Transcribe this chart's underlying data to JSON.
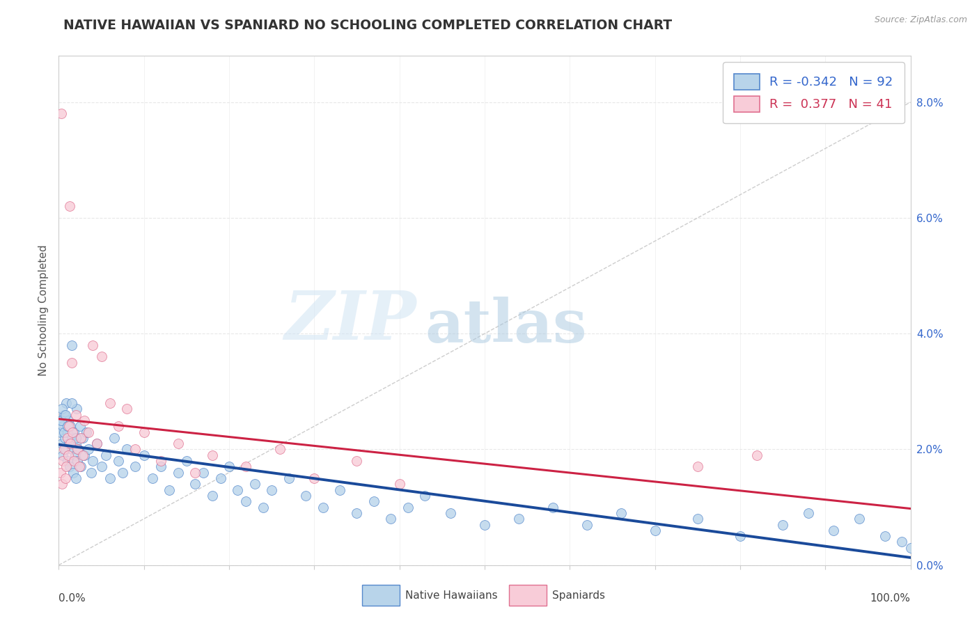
{
  "title": "NATIVE HAWAIIAN VS SPANIARD NO SCHOOLING COMPLETED CORRELATION CHART",
  "source": "Source: ZipAtlas.com",
  "ylabel": "No Schooling Completed",
  "xlim": [
    0.0,
    100.0
  ],
  "ylim": [
    0.0,
    8.8
  ],
  "ytick_vals": [
    0.0,
    2.0,
    4.0,
    6.0,
    8.0
  ],
  "r_hawaiian": -0.342,
  "n_hawaiian": 92,
  "r_spaniard": 0.377,
  "n_spaniard": 41,
  "legend_label_hawaiian": "Native Hawaiians",
  "legend_label_spaniard": "Spaniards",
  "color_hawaiian_fill": "#b8d4ea",
  "color_hawaiian_edge": "#5588cc",
  "color_hawaiian_line": "#1a4a9a",
  "color_spaniard_fill": "#f8ccd8",
  "color_spaniard_edge": "#e07090",
  "color_spaniard_line": "#cc2244",
  "color_diagonal": "#c8c8c8",
  "background_color": "#ffffff",
  "title_color": "#333333",
  "source_color": "#999999",
  "grid_color": "#e8e8e8",
  "tick_label_color": "#3366cc",
  "legend_r_color_h": "#3366cc",
  "legend_r_color_s": "#cc3355",
  "hawaiian_x": [
    0.2,
    0.3,
    0.4,
    0.5,
    0.5,
    0.6,
    0.7,
    0.8,
    0.9,
    1.0,
    1.0,
    1.1,
    1.2,
    1.3,
    1.4,
    1.5,
    1.5,
    1.6,
    1.7,
    1.8,
    1.9,
    2.0,
    2.0,
    2.1,
    2.2,
    2.3,
    2.5,
    2.6,
    2.8,
    3.0,
    3.2,
    3.5,
    3.8,
    4.0,
    4.5,
    5.0,
    5.5,
    6.0,
    6.5,
    7.0,
    7.5,
    8.0,
    9.0,
    10.0,
    11.0,
    12.0,
    13.0,
    14.0,
    15.0,
    16.0,
    17.0,
    18.0,
    19.0,
    20.0,
    21.0,
    22.0,
    23.0,
    24.0,
    25.0,
    27.0,
    29.0,
    31.0,
    33.0,
    35.0,
    37.0,
    39.0,
    41.0,
    43.0,
    46.0,
    50.0,
    54.0,
    58.0,
    62.0,
    66.0,
    70.0,
    75.0,
    80.0,
    85.0,
    88.0,
    91.0,
    94.0,
    97.0,
    99.0,
    100.0,
    0.3,
    0.4,
    0.6,
    0.8,
    1.0,
    1.2,
    1.5,
    2.0
  ],
  "hawaiian_y": [
    2.3,
    2.5,
    2.1,
    2.4,
    1.9,
    2.6,
    2.2,
    2.0,
    2.8,
    2.3,
    1.8,
    2.5,
    2.1,
    1.7,
    2.4,
    2.0,
    3.8,
    2.2,
    1.6,
    2.3,
    1.9,
    2.1,
    1.5,
    2.7,
    1.8,
    2.0,
    2.4,
    1.7,
    2.2,
    1.9,
    2.3,
    2.0,
    1.6,
    1.8,
    2.1,
    1.7,
    1.9,
    1.5,
    2.2,
    1.8,
    1.6,
    2.0,
    1.7,
    1.9,
    1.5,
    1.7,
    1.3,
    1.6,
    1.8,
    1.4,
    1.6,
    1.2,
    1.5,
    1.7,
    1.3,
    1.1,
    1.4,
    1.0,
    1.3,
    1.5,
    1.2,
    1.0,
    1.3,
    0.9,
    1.1,
    0.8,
    1.0,
    1.2,
    0.9,
    0.7,
    0.8,
    1.0,
    0.7,
    0.9,
    0.6,
    0.8,
    0.5,
    0.7,
    0.9,
    0.6,
    0.8,
    0.5,
    0.4,
    0.3,
    2.5,
    2.7,
    2.3,
    2.6,
    2.4,
    2.1,
    2.8,
    2.2
  ],
  "spaniard_x": [
    0.2,
    0.4,
    0.5,
    0.6,
    0.8,
    0.9,
    1.0,
    1.1,
    1.2,
    1.4,
    1.5,
    1.6,
    1.8,
    2.0,
    2.2,
    2.4,
    2.6,
    2.8,
    3.0,
    3.5,
    4.0,
    4.5,
    5.0,
    6.0,
    7.0,
    8.0,
    9.0,
    10.0,
    12.0,
    14.0,
    16.0,
    18.0,
    22.0,
    26.0,
    30.0,
    35.0,
    40.0,
    75.0,
    82.0,
    0.3,
    1.3
  ],
  "spaniard_y": [
    1.6,
    1.4,
    1.8,
    2.0,
    1.5,
    1.7,
    2.2,
    1.9,
    2.4,
    2.1,
    3.5,
    2.3,
    1.8,
    2.6,
    2.0,
    1.7,
    2.2,
    1.9,
    2.5,
    2.3,
    3.8,
    2.1,
    3.6,
    2.8,
    2.4,
    2.7,
    2.0,
    2.3,
    1.8,
    2.1,
    1.6,
    1.9,
    1.7,
    2.0,
    1.5,
    1.8,
    1.4,
    1.7,
    1.9,
    7.8,
    6.2
  ]
}
